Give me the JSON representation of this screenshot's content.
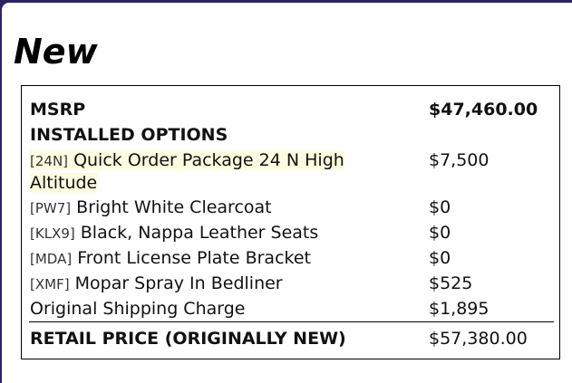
{
  "title": "New",
  "msrp": {
    "label": "MSRP",
    "value": "$47,460.00"
  },
  "installed_options_heading": "INSTALLED OPTIONS",
  "options": [
    {
      "code": "[24N]",
      "name": "Quick Order Package 24 N High Altitude",
      "price": "$7,500",
      "highlighted": true
    },
    {
      "code": "[PW7]",
      "name": "Bright White Clearcoat",
      "price": "$0"
    },
    {
      "code": "[KLX9]",
      "name": "Black, Nappa Leather Seats",
      "price": "$0"
    },
    {
      "code": "[MDA]",
      "name": "Front License Plate Bracket",
      "price": "$0"
    },
    {
      "code": "[XMF]",
      "name": "Mopar Spray In Bedliner",
      "price": "$525"
    }
  ],
  "shipping": {
    "label": "Original Shipping Charge",
    "value": "$1,895"
  },
  "retail": {
    "label": "RETAIL PRICE (ORIGINALLY NEW)",
    "value": "$57,380.00"
  }
}
